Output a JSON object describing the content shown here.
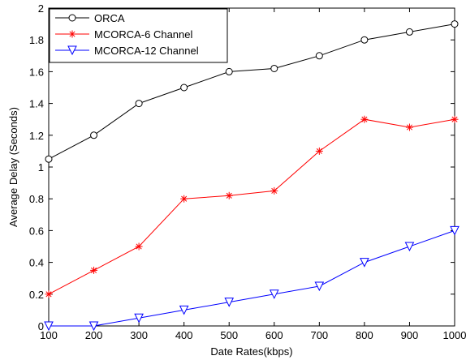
{
  "chart_data": {
    "type": "line",
    "title": "",
    "xlabel": "Date Rates(kbps)",
    "ylabel": "Average Delay (Seconds)",
    "x": [
      100,
      200,
      300,
      400,
      500,
      600,
      700,
      800,
      900,
      1000
    ],
    "xlim": [
      100,
      1000
    ],
    "ylim": [
      0,
      2
    ],
    "xticks": [
      "100",
      "200",
      "300",
      "400",
      "500",
      "600",
      "700",
      "800",
      "900",
      "1000"
    ],
    "yticks": [
      "0",
      "0.2",
      "0.4",
      "0.6",
      "0.8",
      "1",
      "1.2",
      "1.4",
      "1.6",
      "1.8",
      "2"
    ],
    "grid": false,
    "legend_position": "top-left",
    "series": [
      {
        "name": "ORCA",
        "color": "#000000",
        "marker": "circle",
        "values": [
          1.05,
          1.2,
          1.4,
          1.5,
          1.6,
          1.62,
          1.7,
          1.8,
          1.85,
          1.9
        ]
      },
      {
        "name": "MCORCA-6 Channel",
        "color": "#ff0000",
        "marker": "asterisk",
        "values": [
          0.2,
          0.35,
          0.5,
          0.8,
          0.82,
          0.85,
          1.1,
          1.3,
          1.25,
          1.3
        ]
      },
      {
        "name": "MCORCA-12 Channel",
        "color": "#0000ff",
        "marker": "triangle-down",
        "values": [
          0.0,
          0.0,
          0.05,
          0.1,
          0.15,
          0.2,
          0.25,
          0.4,
          0.5,
          0.6
        ]
      }
    ]
  }
}
